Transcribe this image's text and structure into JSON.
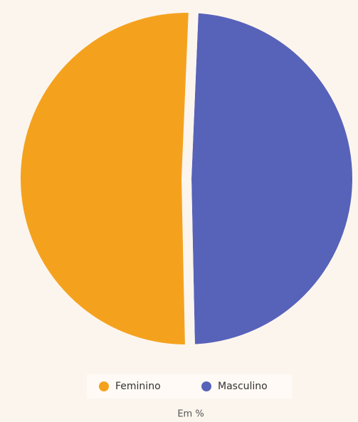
{
  "chart_data": {
    "type": "pie",
    "note": "Em %",
    "categories": [
      "Feminino",
      "Masculino"
    ],
    "values": [
      51,
      49
    ],
    "colors": [
      "#f4a21e",
      "#5762b9"
    ],
    "legend": "bottom"
  }
}
